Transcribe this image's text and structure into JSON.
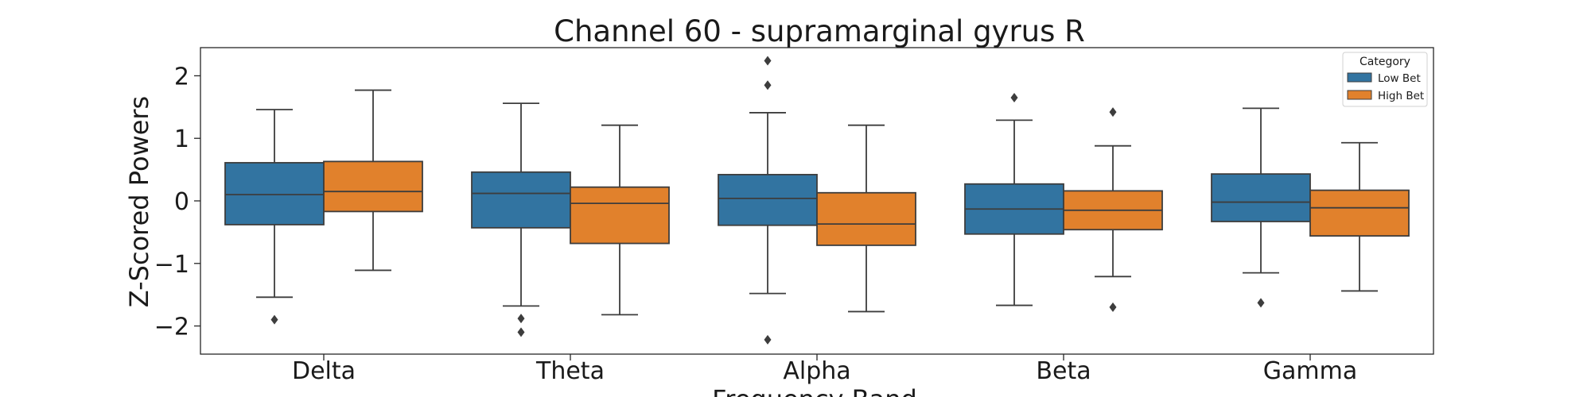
{
  "chart_data": {
    "type": "box",
    "title": "Channel 60 - supramarginal gyrus R",
    "xlabel": "Frequency Band",
    "ylabel": "Z-Scored Powers",
    "ylim": [
      -2.45,
      2.45
    ],
    "yticks": [
      2,
      1,
      0,
      -1,
      -2
    ],
    "ytick_labels": [
      "2",
      "1",
      "0",
      "−1",
      "−2"
    ],
    "categories": [
      "Delta",
      "Theta",
      "Alpha",
      "Beta",
      "Gamma"
    ],
    "legend": {
      "title": "Category",
      "position": "top-right",
      "entries": [
        "Low Bet",
        "High Bet"
      ]
    },
    "series": [
      {
        "name": "Low Bet",
        "color": "#3274a1",
        "boxes": [
          {
            "category": "Delta",
            "whisker_low": -1.54,
            "q1": -0.38,
            "median": 0.1,
            "q3": 0.61,
            "whisker_high": 1.46,
            "outliers": [
              -1.9
            ]
          },
          {
            "category": "Theta",
            "whisker_low": -1.68,
            "q1": -0.43,
            "median": 0.12,
            "q3": 0.46,
            "whisker_high": 1.56,
            "outliers": [
              -1.88,
              -2.1
            ]
          },
          {
            "category": "Alpha",
            "whisker_low": -1.48,
            "q1": -0.39,
            "median": 0.04,
            "q3": 0.42,
            "whisker_high": 1.41,
            "outliers": [
              2.24,
              1.85,
              -2.22
            ]
          },
          {
            "category": "Beta",
            "whisker_low": -1.67,
            "q1": -0.53,
            "median": -0.13,
            "q3": 0.27,
            "whisker_high": 1.29,
            "outliers": [
              1.65
            ]
          },
          {
            "category": "Gamma",
            "whisker_low": -1.15,
            "q1": -0.33,
            "median": -0.02,
            "q3": 0.43,
            "whisker_high": 1.48,
            "outliers": [
              -1.63
            ]
          }
        ]
      },
      {
        "name": "High Bet",
        "color": "#e1812c",
        "boxes": [
          {
            "category": "Delta",
            "whisker_low": -1.11,
            "q1": -0.17,
            "median": 0.15,
            "q3": 0.63,
            "whisker_high": 1.77,
            "outliers": []
          },
          {
            "category": "Theta",
            "whisker_low": -1.82,
            "q1": -0.68,
            "median": -0.04,
            "q3": 0.22,
            "whisker_high": 1.21,
            "outliers": []
          },
          {
            "category": "Alpha",
            "whisker_low": -1.77,
            "q1": -0.71,
            "median": -0.37,
            "q3": 0.13,
            "whisker_high": 1.21,
            "outliers": []
          },
          {
            "category": "Beta",
            "whisker_low": -1.21,
            "q1": -0.46,
            "median": -0.15,
            "q3": 0.16,
            "whisker_high": 0.88,
            "outliers": [
              1.42,
              -1.7
            ]
          },
          {
            "category": "Gamma",
            "whisker_low": -1.44,
            "q1": -0.56,
            "median": -0.11,
            "q3": 0.17,
            "whisker_high": 0.93,
            "outliers": []
          }
        ]
      }
    ]
  }
}
